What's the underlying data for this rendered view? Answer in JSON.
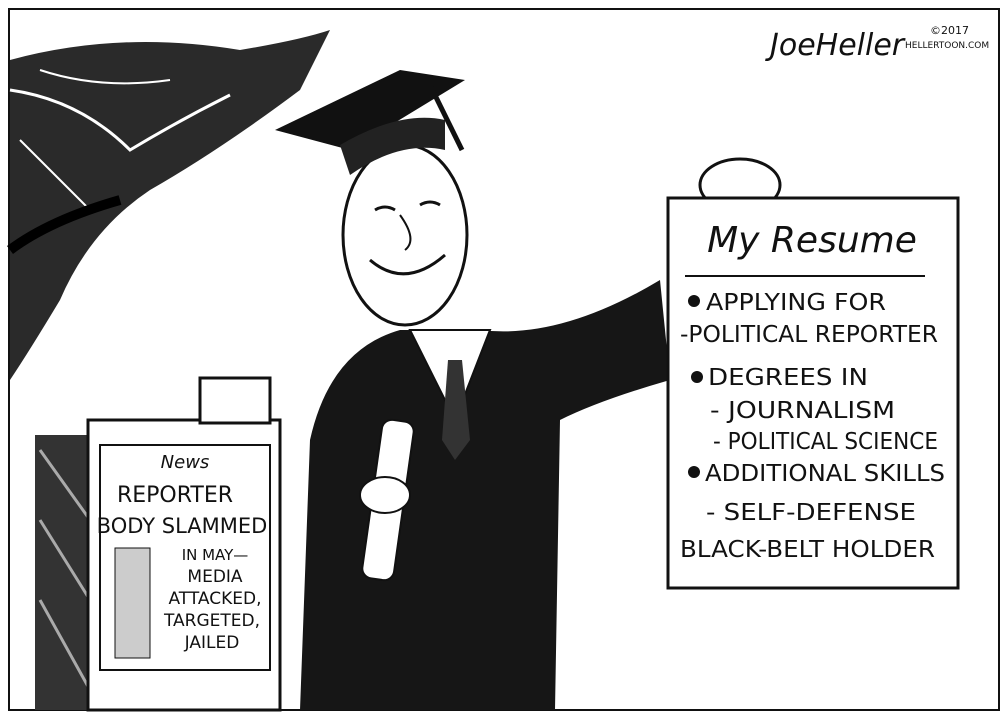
{
  "signature": {
    "name": "JoeHeller",
    "year": "©2017",
    "site": "HELLERTOON.COM"
  },
  "newspaper_box": {
    "masthead": "News",
    "headline": [
      "REPORTER",
      "BODY SLAMMED"
    ],
    "subhead": [
      "IN MAY—",
      "MEDIA",
      "ATTACKED,",
      "TARGETED,",
      "JAILED"
    ]
  },
  "resume": {
    "title": "My Resume",
    "lines": [
      "APPLYING FOR",
      "-POLITICAL REPORTER",
      "DEGREES IN",
      "- JOURNALISM",
      "- POLITICAL SCIENCE",
      "ADDITIONAL SKILLS",
      "- SELF-DEFENSE",
      "BLACK-BELT HOLDER"
    ]
  }
}
